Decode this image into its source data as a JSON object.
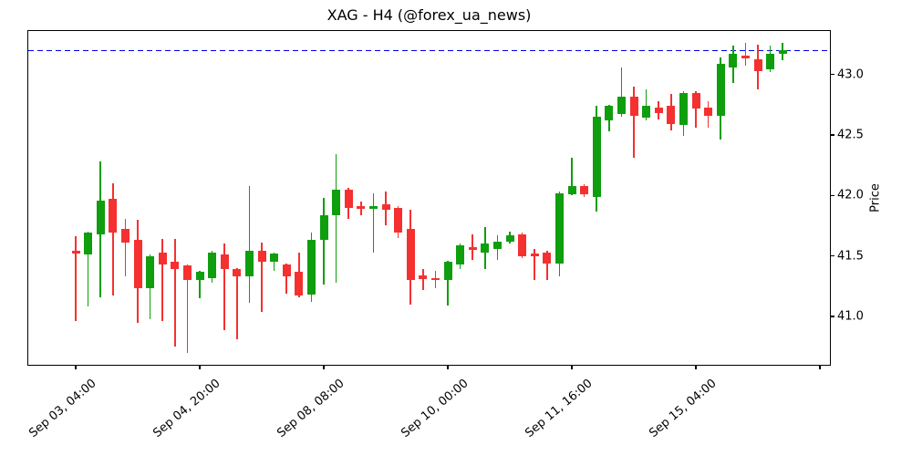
{
  "chart_data": {
    "type": "candlestick",
    "title": "XAG - H4 (@forex_ua_news)",
    "symbol": "XAG",
    "timeframe": "H4",
    "source_handle": "@forex_ua_news",
    "xlabel": "",
    "ylabel": "Price",
    "grid": false,
    "legend": null,
    "ylim": [
      40.6,
      43.36
    ],
    "yticks": [
      43.0,
      42.5,
      42.0,
      41.5,
      41.0
    ],
    "ytick_labels": [
      "43.0",
      "42.5",
      "42.0",
      "41.5",
      "41.0"
    ],
    "xticks": [
      {
        "index": 0,
        "label": "Sep 03, 04:00"
      },
      {
        "index": 10,
        "label": "Sep 04, 20:00"
      },
      {
        "index": 20,
        "label": "Sep 08, 08:00"
      },
      {
        "index": 30,
        "label": "Sep 10, 00:00"
      },
      {
        "index": 40,
        "label": "Sep 11, 16:00"
      },
      {
        "index": 50,
        "label": "Sep 15, 04:00"
      },
      {
        "index": 60,
        "label": ""
      }
    ],
    "hline": {
      "value": 43.2,
      "style": "dashed",
      "color": "#0000ee"
    },
    "colors": {
      "up": "#0e9e0e",
      "down": "#f53030",
      "hline": "#0000ee",
      "axis": "#000000",
      "text": "#000000",
      "background": "#ffffff"
    },
    "ohlc_order": "open,high,low,close",
    "candles": [
      [
        41.54,
        41.66,
        40.96,
        41.52
      ],
      [
        41.51,
        41.7,
        41.08,
        41.69
      ],
      [
        41.68,
        42.28,
        41.16,
        41.96
      ],
      [
        41.97,
        42.1,
        41.17,
        41.69
      ],
      [
        41.72,
        41.81,
        41.33,
        41.61
      ],
      [
        41.63,
        41.8,
        40.95,
        41.23
      ],
      [
        41.23,
        41.51,
        40.98,
        41.5
      ],
      [
        41.53,
        41.64,
        40.96,
        41.43
      ],
      [
        41.45,
        41.64,
        40.75,
        41.39
      ],
      [
        41.42,
        41.43,
        40.7,
        41.3
      ],
      [
        41.3,
        41.38,
        41.15,
        41.37
      ],
      [
        41.32,
        41.54,
        41.28,
        41.53
      ],
      [
        41.51,
        41.6,
        40.89,
        41.39
      ],
      [
        41.39,
        41.4,
        40.81,
        41.33
      ],
      [
        41.33,
        42.08,
        41.11,
        41.54
      ],
      [
        41.54,
        41.61,
        41.04,
        41.45
      ],
      [
        41.45,
        41.53,
        41.38,
        41.52
      ],
      [
        41.43,
        41.44,
        41.19,
        41.33
      ],
      [
        41.37,
        41.53,
        41.16,
        41.17
      ],
      [
        41.18,
        41.69,
        41.12,
        41.63
      ],
      [
        41.63,
        41.98,
        41.26,
        41.84
      ],
      [
        41.84,
        42.34,
        41.28,
        42.05
      ],
      [
        42.05,
        42.06,
        41.81,
        41.9
      ],
      [
        41.91,
        41.95,
        41.84,
        41.89
      ],
      [
        41.89,
        42.02,
        41.53,
        41.91
      ],
      [
        41.93,
        42.03,
        41.75,
        41.88
      ],
      [
        41.9,
        41.91,
        41.65,
        41.69
      ],
      [
        41.72,
        41.88,
        41.1,
        41.3
      ],
      [
        41.34,
        41.39,
        41.22,
        41.31
      ],
      [
        41.32,
        41.38,
        41.23,
        41.3
      ],
      [
        41.3,
        41.46,
        41.09,
        41.45
      ],
      [
        41.43,
        41.6,
        41.39,
        41.59
      ],
      [
        41.57,
        41.68,
        41.47,
        41.55
      ],
      [
        41.53,
        41.74,
        41.39,
        41.6
      ],
      [
        41.56,
        41.67,
        41.47,
        41.62
      ],
      [
        41.62,
        41.7,
        41.6,
        41.67
      ],
      [
        41.68,
        41.69,
        41.48,
        41.5
      ],
      [
        41.52,
        41.56,
        41.3,
        41.5
      ],
      [
        41.53,
        41.54,
        41.3,
        41.44
      ],
      [
        41.44,
        42.03,
        41.33,
        42.02
      ],
      [
        42.01,
        42.31,
        42.0,
        42.08
      ],
      [
        42.08,
        42.09,
        41.99,
        42.01
      ],
      [
        41.99,
        42.74,
        41.87,
        42.65
      ],
      [
        42.62,
        42.75,
        42.53,
        42.74
      ],
      [
        42.67,
        43.06,
        42.65,
        42.82
      ],
      [
        42.82,
        42.9,
        42.31,
        42.66
      ],
      [
        42.64,
        42.88,
        42.62,
        42.74
      ],
      [
        42.73,
        42.78,
        42.63,
        42.68
      ],
      [
        42.74,
        42.84,
        42.54,
        42.59
      ],
      [
        42.58,
        42.86,
        42.49,
        42.85
      ],
      [
        42.85,
        42.86,
        42.56,
        42.72
      ],
      [
        42.73,
        42.78,
        42.56,
        42.66
      ],
      [
        42.66,
        43.14,
        42.46,
        43.09
      ],
      [
        43.06,
        43.24,
        42.93,
        43.17
      ],
      [
        43.16,
        43.26,
        43.07,
        43.13
      ],
      [
        43.13,
        43.25,
        42.88,
        43.03
      ],
      [
        43.04,
        43.24,
        43.02,
        43.17
      ],
      [
        43.17,
        43.26,
        43.12,
        43.2
      ]
    ]
  }
}
